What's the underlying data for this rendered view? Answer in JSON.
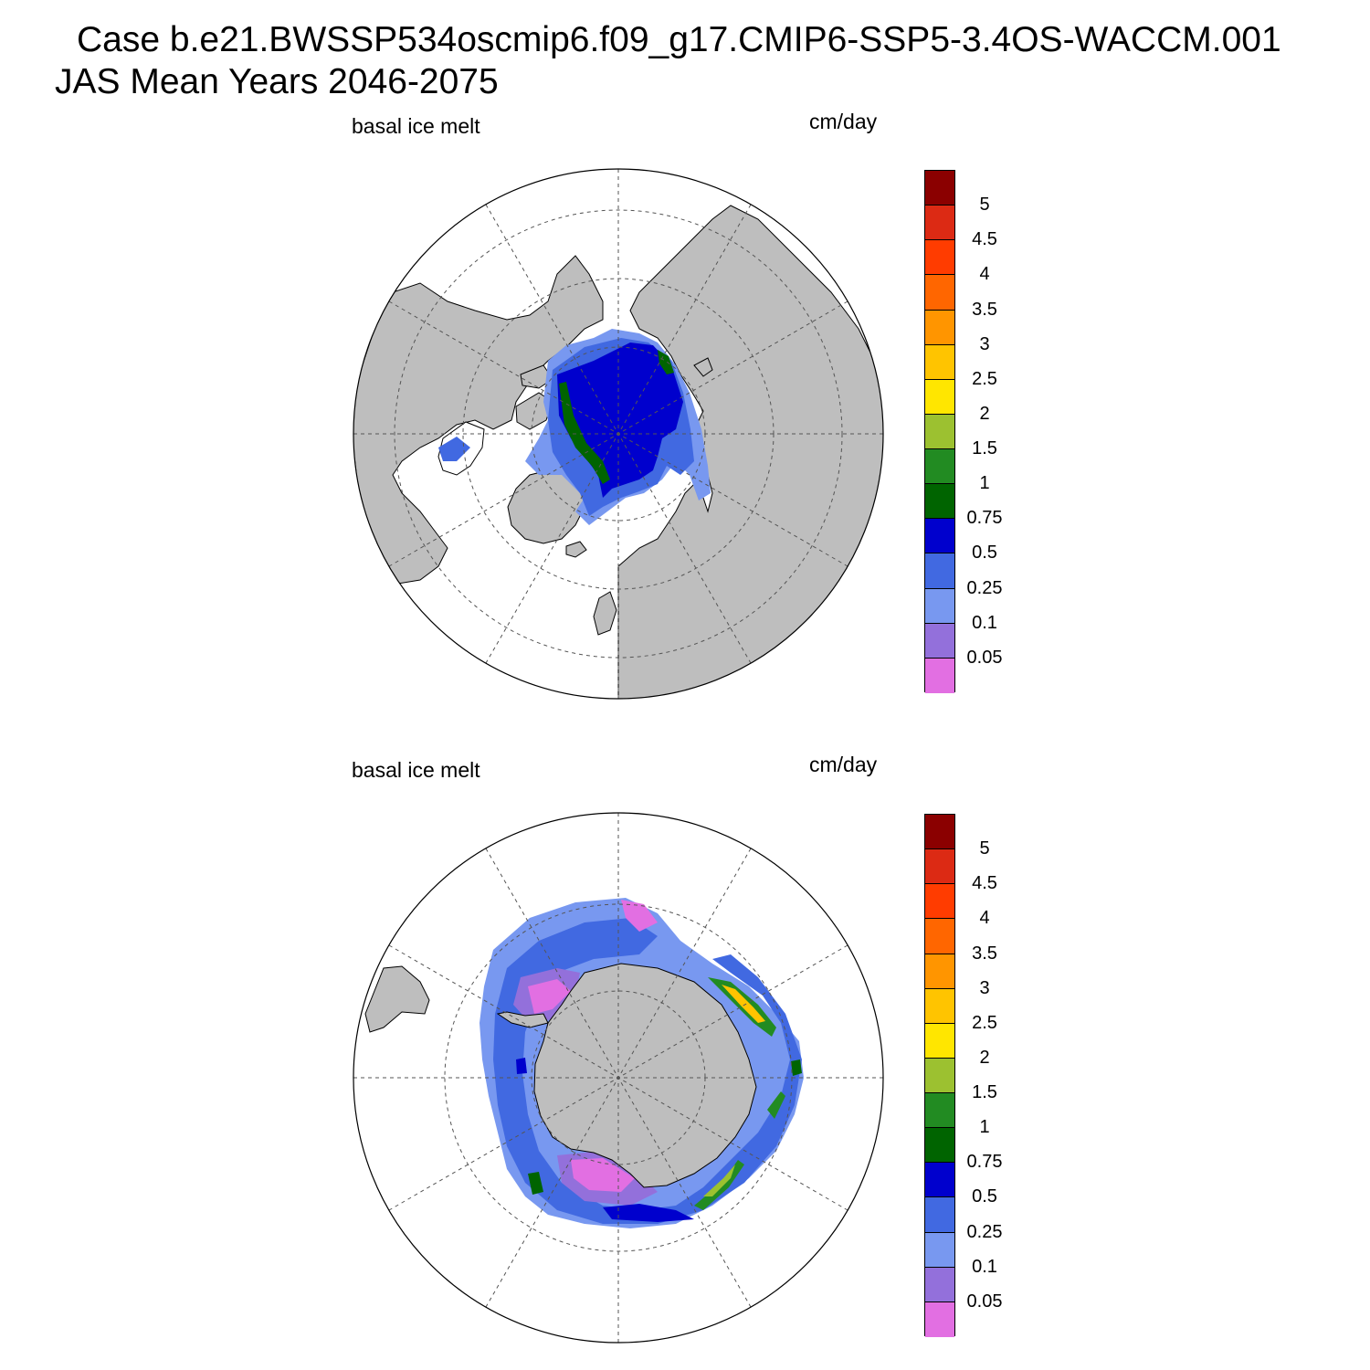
{
  "title": {
    "line1": "Case b.e21.BWSSP534oscmip6.f09_g17.CMIP6-SSP5-3.4OS-WACCM.001",
    "line2": "JAS Mean   Years 2046-2075"
  },
  "panels": [
    {
      "id": "north",
      "variable": "basal ice melt",
      "units": "cm/day"
    },
    {
      "id": "south",
      "variable": "basal ice melt",
      "units": "cm/day"
    }
  ],
  "colorbar": {
    "labels": [
      "5",
      "4.5",
      "4",
      "3.5",
      "3",
      "2.5",
      "2",
      "1.5",
      "1",
      "0.75",
      "0.5",
      "0.25",
      "0.1",
      "0.05"
    ],
    "colors": [
      "#8b0000",
      "#dc2a14",
      "#ff3c00",
      "#ff6600",
      "#ff9500",
      "#ffc400",
      "#ffe600",
      "#9cc130",
      "#228b22",
      "#006400",
      "#0000cd",
      "#4169e1",
      "#7898f0",
      "#9370db",
      "#e26fe2"
    ]
  },
  "map_colors": {
    "land": "#bebebe",
    "ocean": "#ffffff",
    "coast": "#000000",
    "grid": "#555555"
  }
}
